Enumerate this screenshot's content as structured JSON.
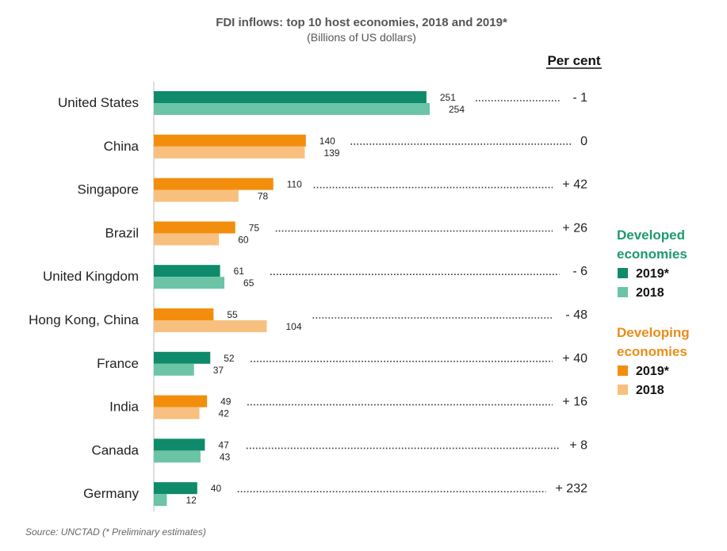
{
  "chart_data": {
    "type": "bar",
    "orientation": "horizontal",
    "title": "FDI inflows: top 10 host economies, 2018 and 2019*",
    "subtitle": "(Billions of US dollars)",
    "categories": [
      "United States",
      "China",
      "Singapore",
      "Brazil",
      "United Kingdom",
      "Hong Kong, China",
      "France",
      "India",
      "Canada",
      "Germany"
    ],
    "group": [
      "developed",
      "developing",
      "developing",
      "developing",
      "developed",
      "developing",
      "developed",
      "developing",
      "developed",
      "developed"
    ],
    "series": [
      {
        "name": "2019*",
        "values": [
          251,
          140,
          110,
          75,
          61,
          55,
          52,
          49,
          47,
          40
        ]
      },
      {
        "name": "2018",
        "values": [
          254,
          139,
          78,
          60,
          65,
          104,
          37,
          42,
          43,
          12
        ]
      }
    ],
    "per_cent_header": "Per cent",
    "per_cent": [
      "- 1",
      "0",
      "+ 42",
      "+ 26",
      "- 6",
      "- 48",
      "+ 40",
      "+ 16",
      "+ 8",
      "+ 232"
    ],
    "xlim": [
      0,
      254
    ],
    "grid": false,
    "legend_position": "right",
    "legend": [
      {
        "title": "Developed economies",
        "title_lines": [
          "Developed",
          "economies"
        ],
        "items": [
          "2019*",
          "2018"
        ]
      },
      {
        "title": "Developing economies",
        "title_lines": [
          "Developing",
          "economies"
        ],
        "items": [
          "2019*",
          "2018"
        ]
      }
    ],
    "colors": {
      "developed_2019": "#0f8a6a",
      "developed_2018": "#6bc4a6",
      "developing_2019": "#f28e0c",
      "developing_2018": "#f8c07f",
      "developed_title": "#1d9a6c",
      "developing_title": "#e88e19"
    },
    "source": "Source: UNCTAD (* Preliminary estimates)"
  }
}
